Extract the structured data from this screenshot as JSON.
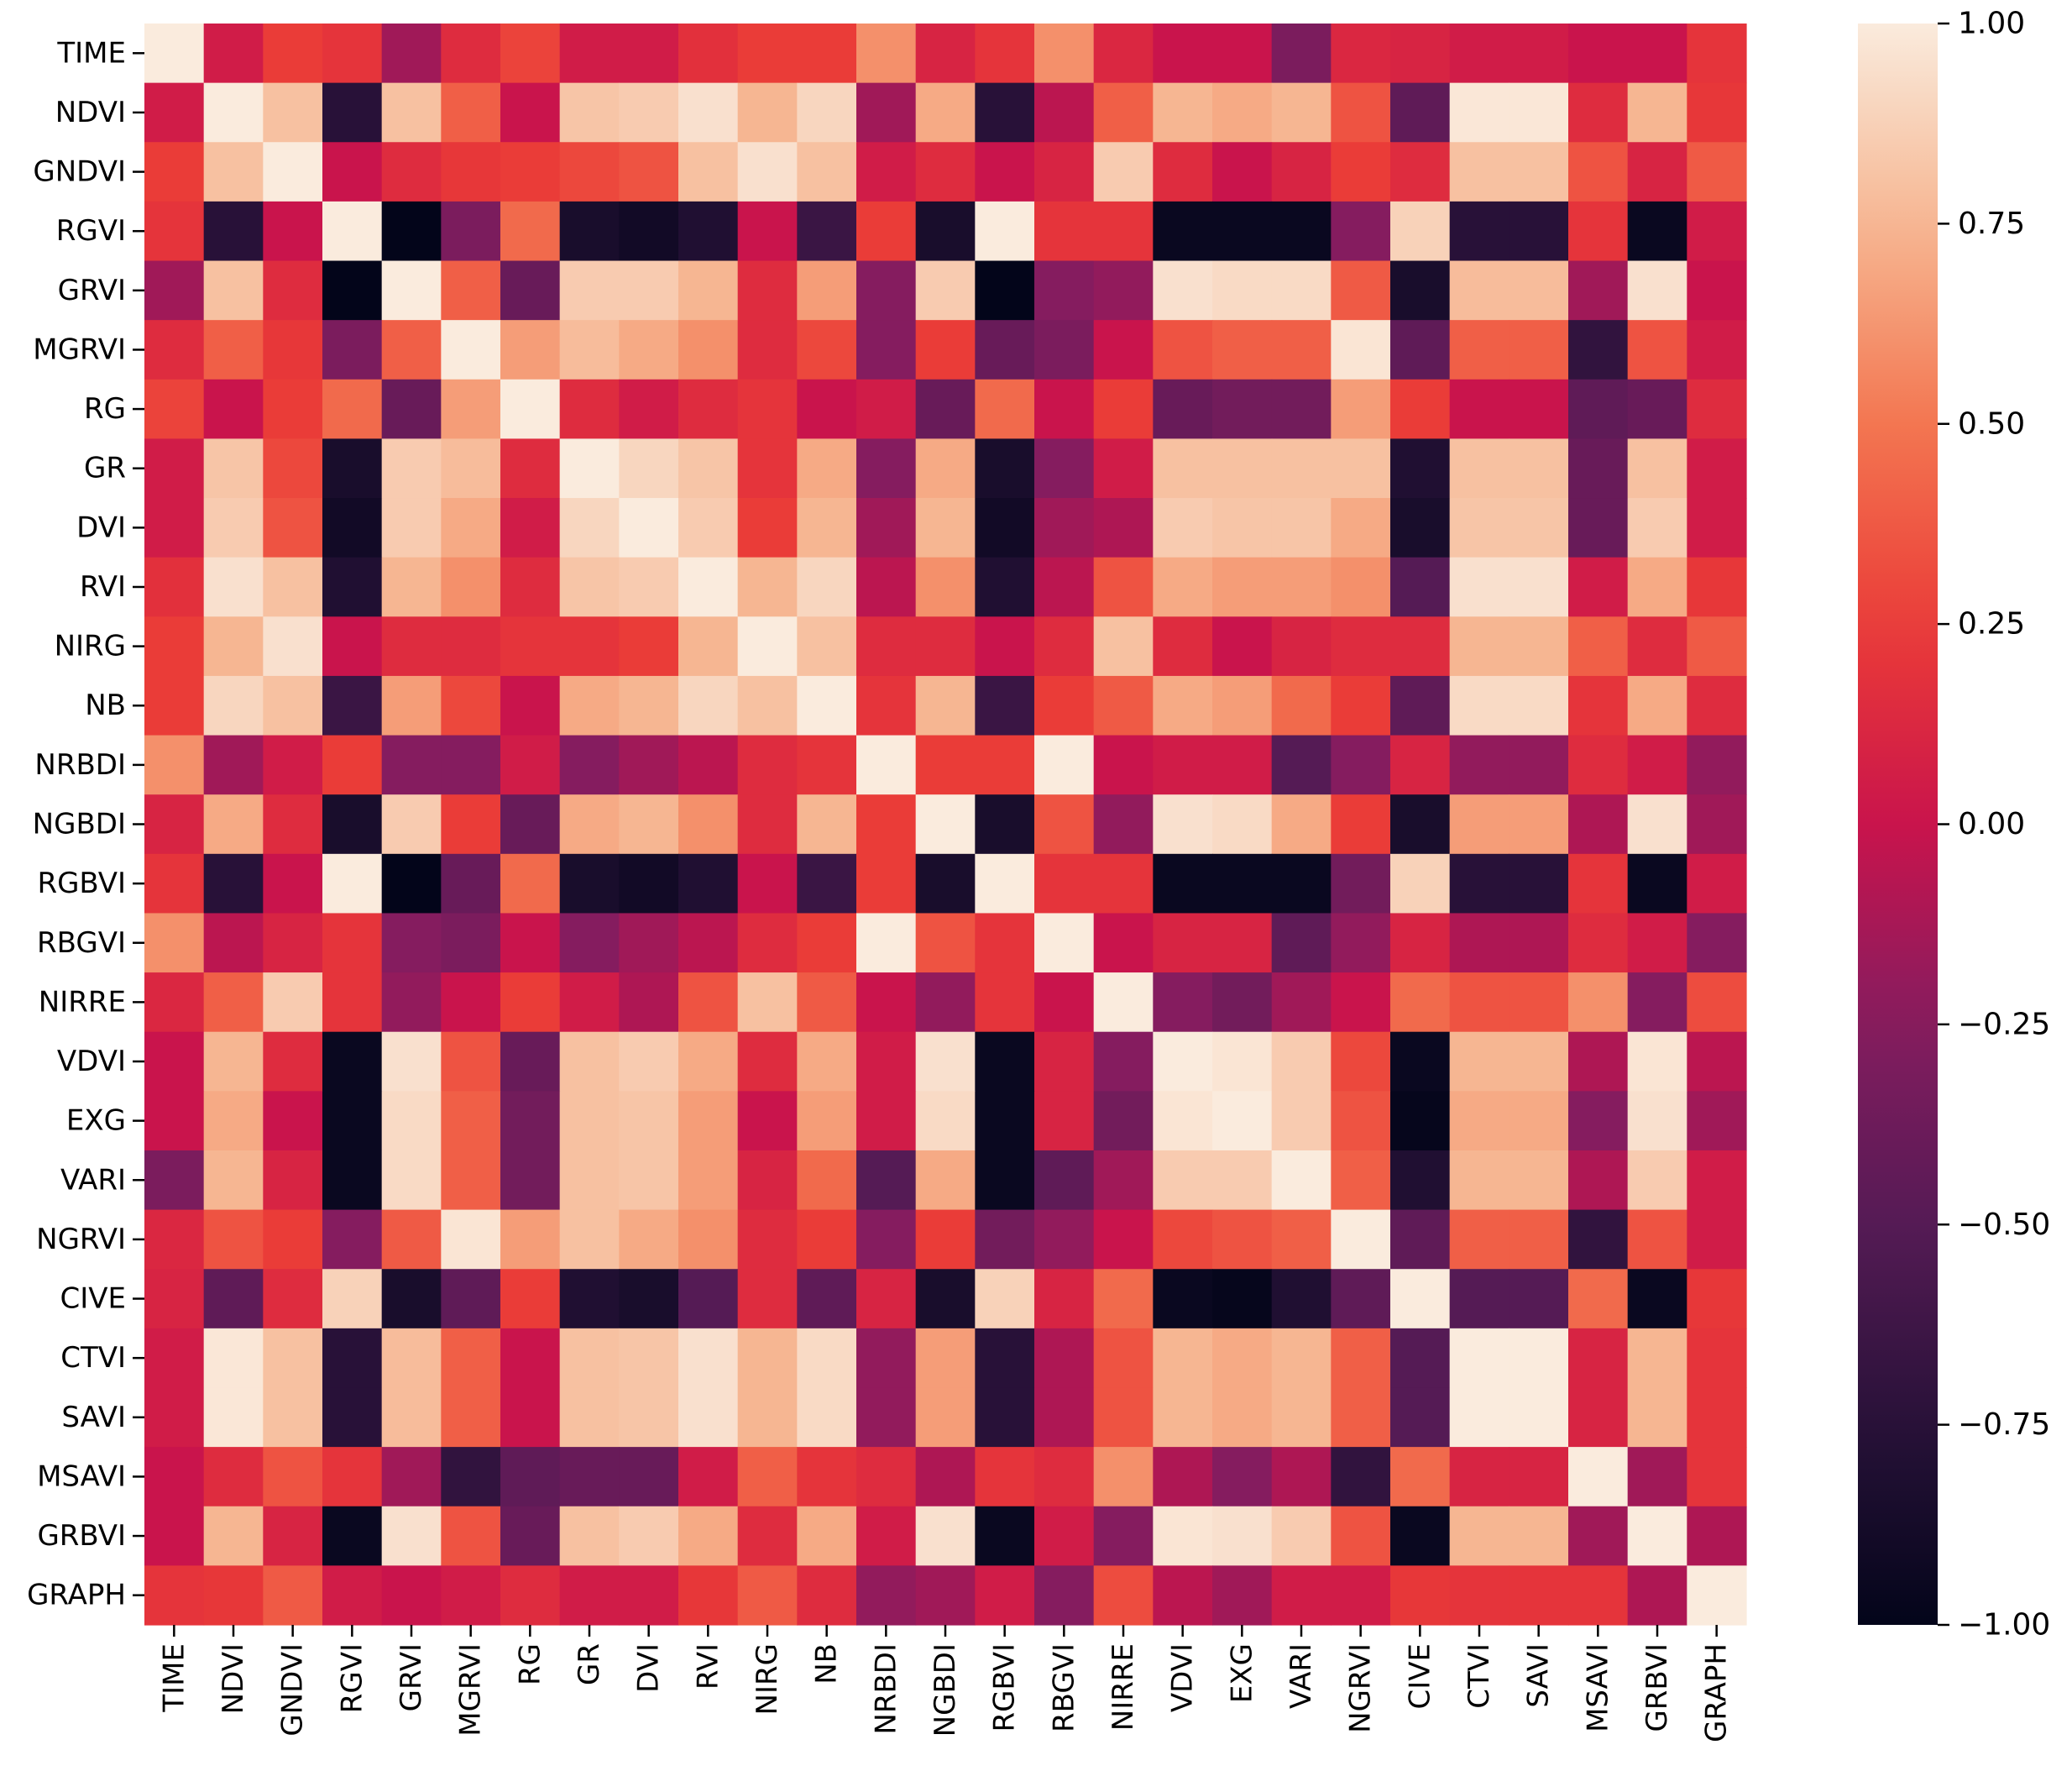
{
  "chart_data": {
    "type": "heatmap",
    "title": "",
    "xlabel": "",
    "ylabel": "",
    "labels": [
      "TIME",
      "NDVI",
      "GNDVI",
      "RGVI",
      "GRVI",
      "MGRVI",
      "RG",
      "GR",
      "DVI",
      "RVI",
      "NIRG",
      "NB",
      "NRBDI",
      "NGBDI",
      "RGBVI",
      "RBGVI",
      "NIRRE",
      "VDVI",
      "EXG",
      "VARI",
      "NGRVI",
      "CIVE",
      "CTVI",
      "SAVI",
      "MSAVI",
      "GRBVI",
      "GRAPH"
    ],
    "value_range": [
      -1,
      1
    ],
    "colormap": "rocket",
    "colorbar": {
      "ticks": [
        1.0,
        0.75,
        0.5,
        0.25,
        0.0,
        -0.25,
        -0.5,
        -0.75,
        -1.0
      ],
      "tick_labels": [
        "1.00",
        "0.75",
        "0.50",
        "0.25",
        "0.00",
        "−0.25",
        "−0.50",
        "−0.75",
        "−1.00"
      ]
    },
    "matrix": [
      [
        1.0,
        0.05,
        0.25,
        0.2,
        -0.15,
        0.15,
        0.28,
        0.05,
        0.05,
        0.18,
        0.25,
        0.25,
        0.6,
        0.1,
        0.2,
        0.6,
        0.12,
        0.0,
        0.0,
        -0.3,
        0.12,
        0.1,
        0.05,
        0.05,
        0.0,
        0.0,
        0.2
      ],
      [
        0.05,
        1.0,
        0.8,
        -0.75,
        0.8,
        0.4,
        0.0,
        0.82,
        0.85,
        0.95,
        0.75,
        0.9,
        -0.15,
        0.7,
        -0.75,
        -0.05,
        0.4,
        0.75,
        0.7,
        0.75,
        0.35,
        -0.45,
        0.98,
        0.98,
        0.15,
        0.75,
        0.22
      ],
      [
        0.25,
        0.8,
        1.0,
        0.0,
        0.15,
        0.22,
        0.25,
        0.3,
        0.35,
        0.8,
        0.95,
        0.8,
        0.05,
        0.15,
        0.0,
        0.1,
        0.85,
        0.15,
        0.0,
        0.1,
        0.25,
        0.15,
        0.8,
        0.8,
        0.35,
        0.1,
        0.38
      ],
      [
        0.2,
        -0.75,
        0.0,
        1.0,
        -1.0,
        -0.3,
        0.45,
        -0.85,
        -0.9,
        -0.8,
        0.0,
        -0.65,
        0.25,
        -0.85,
        1.0,
        0.2,
        0.2,
        -0.95,
        -0.95,
        -0.95,
        -0.25,
        0.88,
        -0.75,
        -0.75,
        0.2,
        -0.95,
        0.05
      ],
      [
        -0.15,
        0.8,
        0.15,
        -1.0,
        1.0,
        0.4,
        -0.4,
        0.85,
        0.85,
        0.75,
        0.15,
        0.65,
        -0.25,
        0.85,
        -1.0,
        -0.25,
        -0.2,
        0.95,
        0.92,
        0.92,
        0.38,
        -0.85,
        0.78,
        0.78,
        -0.15,
        0.95,
        0.0
      ],
      [
        0.15,
        0.4,
        0.22,
        -0.3,
        0.4,
        1.0,
        0.65,
        0.78,
        0.7,
        0.6,
        0.15,
        0.3,
        -0.25,
        0.25,
        -0.4,
        -0.3,
        0.0,
        0.35,
        0.4,
        0.4,
        0.97,
        -0.45,
        0.4,
        0.4,
        -0.7,
        0.35,
        0.05
      ],
      [
        0.28,
        0.0,
        0.25,
        0.45,
        -0.4,
        0.65,
        1.0,
        0.15,
        0.05,
        0.15,
        0.2,
        0.0,
        0.05,
        -0.4,
        0.45,
        0.0,
        0.25,
        -0.4,
        -0.35,
        -0.35,
        0.65,
        0.25,
        0.0,
        0.0,
        -0.45,
        -0.4,
        0.15
      ],
      [
        0.05,
        0.82,
        0.3,
        -0.85,
        0.85,
        0.78,
        0.15,
        1.0,
        0.9,
        0.82,
        0.2,
        0.7,
        -0.25,
        0.7,
        -0.85,
        -0.25,
        0.05,
        0.8,
        0.8,
        0.8,
        0.8,
        -0.8,
        0.8,
        0.8,
        -0.4,
        0.8,
        0.05
      ],
      [
        0.05,
        0.85,
        0.35,
        -0.9,
        0.85,
        0.7,
        0.05,
        0.9,
        1.0,
        0.85,
        0.25,
        0.75,
        -0.15,
        0.75,
        -0.9,
        -0.15,
        -0.1,
        0.85,
        0.82,
        0.82,
        0.7,
        -0.85,
        0.82,
        0.82,
        -0.4,
        0.85,
        0.05
      ],
      [
        0.18,
        0.95,
        0.8,
        -0.8,
        0.75,
        0.6,
        0.15,
        0.82,
        0.85,
        1.0,
        0.75,
        0.9,
        -0.05,
        0.6,
        -0.8,
        -0.05,
        0.35,
        0.7,
        0.65,
        0.65,
        0.6,
        -0.5,
        0.95,
        0.95,
        0.05,
        0.7,
        0.22
      ],
      [
        0.25,
        0.75,
        0.95,
        0.0,
        0.15,
        0.15,
        0.2,
        0.2,
        0.25,
        0.75,
        1.0,
        0.8,
        0.15,
        0.15,
        0.0,
        0.15,
        0.8,
        0.15,
        0.0,
        0.1,
        0.15,
        0.15,
        0.75,
        0.75,
        0.4,
        0.15,
        0.38
      ],
      [
        0.25,
        0.9,
        0.8,
        -0.65,
        0.65,
        0.3,
        0.0,
        0.7,
        0.75,
        0.9,
        0.8,
        1.0,
        0.2,
        0.75,
        -0.65,
        0.25,
        0.38,
        0.7,
        0.65,
        0.45,
        0.25,
        -0.45,
        0.92,
        0.92,
        0.2,
        0.7,
        0.15
      ],
      [
        0.6,
        -0.15,
        0.05,
        0.25,
        -0.25,
        -0.25,
        0.05,
        -0.25,
        -0.15,
        -0.05,
        0.15,
        0.2,
        1.0,
        0.25,
        0.25,
        1.0,
        0.0,
        0.05,
        0.05,
        -0.5,
        -0.25,
        0.1,
        -0.2,
        -0.2,
        0.15,
        0.05,
        -0.2
      ],
      [
        0.1,
        0.7,
        0.15,
        -0.85,
        0.85,
        0.25,
        -0.4,
        0.7,
        0.75,
        0.6,
        0.15,
        0.75,
        0.25,
        1.0,
        -0.85,
        0.35,
        -0.2,
        0.95,
        0.92,
        0.7,
        0.25,
        -0.85,
        0.65,
        0.65,
        -0.1,
        0.95,
        -0.15
      ],
      [
        0.2,
        -0.75,
        0.0,
        1.0,
        -1.0,
        -0.4,
        0.45,
        -0.85,
        -0.9,
        -0.8,
        0.0,
        -0.65,
        0.25,
        -0.85,
        1.0,
        0.2,
        0.2,
        -0.95,
        -0.95,
        -0.95,
        -0.35,
        0.88,
        -0.75,
        -0.75,
        0.2,
        -0.95,
        0.05
      ],
      [
        0.6,
        -0.05,
        0.1,
        0.2,
        -0.25,
        -0.3,
        0.0,
        -0.25,
        -0.15,
        -0.05,
        0.15,
        0.25,
        1.0,
        0.35,
        0.2,
        1.0,
        0.0,
        0.1,
        0.1,
        -0.45,
        -0.2,
        0.1,
        -0.1,
        -0.1,
        0.15,
        0.05,
        -0.25
      ],
      [
        0.12,
        0.4,
        0.85,
        0.2,
        -0.2,
        0.0,
        0.25,
        0.05,
        -0.1,
        0.35,
        0.8,
        0.38,
        0.0,
        -0.2,
        0.2,
        0.0,
        1.0,
        -0.25,
        -0.35,
        -0.15,
        0.0,
        0.45,
        0.35,
        0.35,
        0.6,
        -0.25,
        0.32
      ],
      [
        0.0,
        0.75,
        0.15,
        -0.95,
        0.95,
        0.35,
        -0.4,
        0.8,
        0.85,
        0.7,
        0.15,
        0.7,
        0.05,
        0.95,
        -0.95,
        0.1,
        -0.25,
        1.0,
        0.97,
        0.85,
        0.3,
        -0.95,
        0.75,
        0.75,
        -0.1,
        0.97,
        -0.05
      ],
      [
        0.0,
        0.7,
        0.0,
        -0.95,
        0.92,
        0.4,
        -0.35,
        0.8,
        0.82,
        0.65,
        0.0,
        0.65,
        0.05,
        0.92,
        -0.95,
        0.1,
        -0.35,
        0.97,
        1.0,
        0.85,
        0.35,
        -0.98,
        0.7,
        0.7,
        -0.25,
        0.95,
        -0.15
      ],
      [
        -0.3,
        0.75,
        0.1,
        -0.95,
        0.92,
        0.4,
        -0.35,
        0.8,
        0.82,
        0.65,
        0.1,
        0.45,
        -0.5,
        0.7,
        -0.95,
        -0.45,
        -0.15,
        0.85,
        0.85,
        1.0,
        0.4,
        -0.8,
        0.75,
        0.75,
        -0.1,
        0.85,
        0.05
      ],
      [
        0.12,
        0.35,
        0.25,
        -0.25,
        0.38,
        0.97,
        0.65,
        0.8,
        0.7,
        0.6,
        0.15,
        0.25,
        -0.25,
        0.25,
        -0.35,
        -0.2,
        0.0,
        0.3,
        0.35,
        0.4,
        1.0,
        -0.45,
        0.4,
        0.4,
        -0.7,
        0.35,
        0.05
      ],
      [
        0.1,
        -0.45,
        0.15,
        0.88,
        -0.85,
        -0.45,
        0.25,
        -0.8,
        -0.85,
        -0.5,
        0.15,
        -0.45,
        0.1,
        -0.85,
        0.88,
        0.1,
        0.45,
        -0.95,
        -0.98,
        -0.8,
        -0.45,
        1.0,
        -0.5,
        -0.5,
        0.45,
        -0.95,
        0.22
      ],
      [
        0.05,
        0.98,
        0.8,
        -0.75,
        0.78,
        0.4,
        0.0,
        0.8,
        0.82,
        0.95,
        0.75,
        0.92,
        -0.2,
        0.65,
        -0.75,
        -0.1,
        0.35,
        0.75,
        0.7,
        0.75,
        0.4,
        -0.5,
        1.0,
        1.0,
        0.1,
        0.75,
        0.2
      ],
      [
        0.05,
        0.98,
        0.8,
        -0.75,
        0.78,
        0.4,
        0.0,
        0.8,
        0.82,
        0.95,
        0.75,
        0.92,
        -0.2,
        0.65,
        -0.75,
        -0.1,
        0.35,
        0.75,
        0.7,
        0.75,
        0.4,
        -0.5,
        1.0,
        1.0,
        0.1,
        0.75,
        0.2
      ],
      [
        0.0,
        0.15,
        0.35,
        0.2,
        -0.15,
        -0.7,
        -0.45,
        -0.4,
        -0.4,
        0.05,
        0.4,
        0.2,
        0.15,
        -0.1,
        0.2,
        0.15,
        0.6,
        -0.1,
        -0.25,
        -0.1,
        -0.7,
        0.45,
        0.1,
        0.1,
        1.0,
        -0.15,
        0.2
      ],
      [
        0.0,
        0.75,
        0.1,
        -0.95,
        0.95,
        0.35,
        -0.4,
        0.8,
        0.85,
        0.7,
        0.15,
        0.7,
        0.05,
        0.95,
        -0.95,
        0.05,
        -0.25,
        0.97,
        0.95,
        0.85,
        0.35,
        -0.95,
        0.75,
        0.75,
        -0.15,
        1.0,
        -0.1
      ],
      [
        0.2,
        0.22,
        0.38,
        0.05,
        0.0,
        0.05,
        0.15,
        0.05,
        0.05,
        0.22,
        0.38,
        0.15,
        -0.2,
        -0.15,
        0.05,
        -0.25,
        0.32,
        -0.05,
        -0.15,
        0.05,
        0.05,
        0.22,
        0.2,
        0.2,
        0.2,
        -0.1,
        1.0
      ]
    ]
  }
}
